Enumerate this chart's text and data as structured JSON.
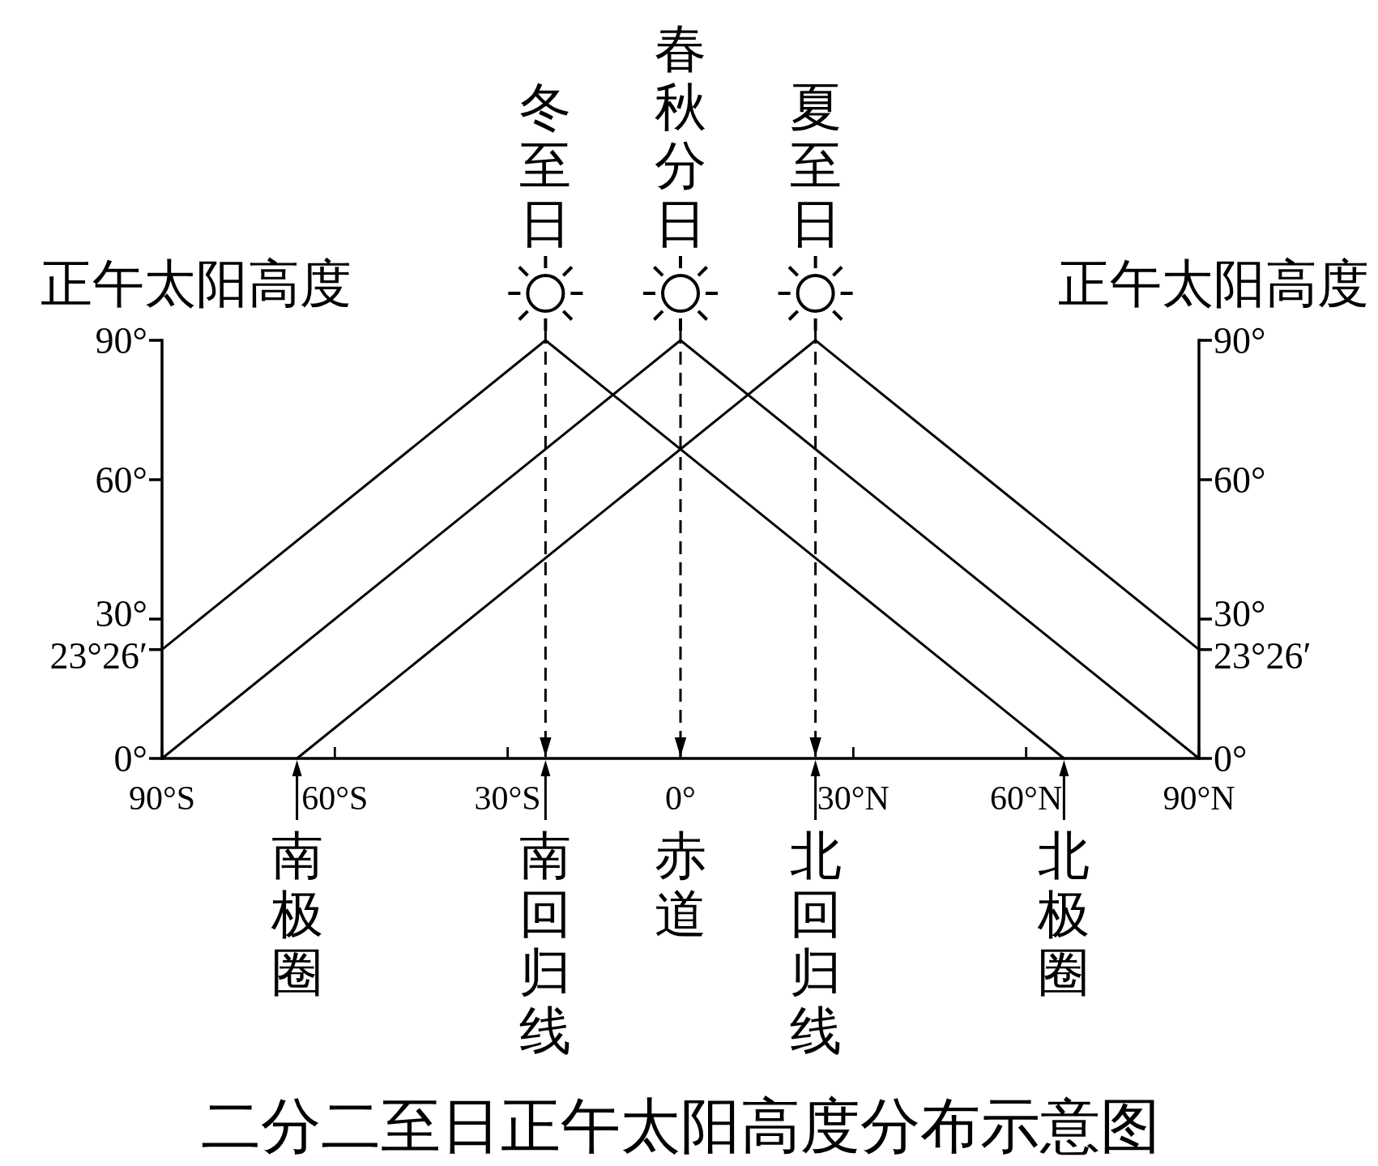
{
  "chart_data": {
    "type": "line",
    "title": "二分二至日正午太阳高度分布示意图",
    "ylabel": "正午太阳高度",
    "y2label": "正午太阳高度",
    "series": [
      {
        "name": "冬至日",
        "color": "#000000",
        "x": [
          -90,
          -23.43,
          66.57
        ],
        "values": [
          23.43,
          90,
          0
        ]
      },
      {
        "name": "春秋分日",
        "color": "#000000",
        "x": [
          -90,
          0,
          90
        ],
        "values": [
          0,
          90,
          0
        ]
      },
      {
        "name": "夏至日",
        "color": "#000000",
        "x": [
          -66.57,
          23.43,
          90
        ],
        "values": [
          0,
          90,
          23.43
        ]
      }
    ],
    "xlim": [
      -90,
      90
    ],
    "xticks": [
      {
        "value": -90,
        "label": "90°S"
      },
      {
        "value": -60,
        "label": "60°S"
      },
      {
        "value": -30,
        "label": "30°S"
      },
      {
        "value": 0,
        "label": "0°"
      },
      {
        "value": 30,
        "label": "30°N"
      },
      {
        "value": 60,
        "label": "60°N"
      },
      {
        "value": 90,
        "label": "90°N"
      }
    ],
    "ylim": [
      0,
      90
    ],
    "yticks": [
      {
        "value": 0,
        "label": "0°"
      },
      {
        "value": 23.43,
        "label": "23°26′"
      },
      {
        "value": 30,
        "label": "30°"
      },
      {
        "value": 60,
        "label": "60°"
      },
      {
        "value": 90,
        "label": "90°"
      }
    ],
    "y2lim": [
      0,
      90
    ],
    "y2ticks": [
      {
        "value": 0,
        "label": "0°"
      },
      {
        "value": 23.43,
        "label": "23°26′"
      },
      {
        "value": 30,
        "label": "30°"
      },
      {
        "value": 60,
        "label": "60°"
      },
      {
        "value": 90,
        "label": "90°"
      }
    ],
    "ref_lines": [
      {
        "axis": "x",
        "value": -23.43,
        "line_style": "dashed"
      },
      {
        "axis": "x",
        "value": 0,
        "line_style": "dashed"
      },
      {
        "axis": "x",
        "value": 23.43,
        "line_style": "dashed"
      }
    ],
    "annotations": [
      {
        "text": "南极圈",
        "x": -66.57,
        "y": 0
      },
      {
        "text": "南回归线",
        "x": -23.43,
        "y": 0
      },
      {
        "text": "赤道",
        "x": 0,
        "y": 0
      },
      {
        "text": "北回归线",
        "x": 23.43,
        "y": 0
      },
      {
        "text": "北极圈",
        "x": 66.57,
        "y": 0
      }
    ],
    "line_style": "solid"
  }
}
